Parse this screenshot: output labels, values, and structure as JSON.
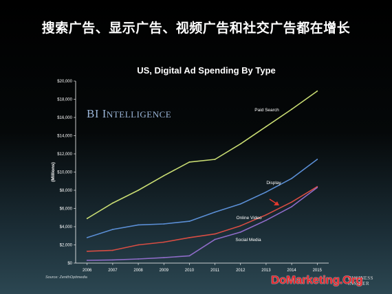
{
  "headline": "搜索广告、显示广告、视频广告和社交广告都在增长",
  "logo": {
    "main": "BI",
    "rest": "Intelligence"
  },
  "source": "Source: ZenithOptimedia",
  "brand": {
    "line1": "BUSINESS",
    "line2": "INSIDER"
  },
  "watermark": "DoMarketing.Org",
  "colors": {
    "paid_search": "#c9dd73",
    "display": "#5b8fd6",
    "online_video": "#d94d43",
    "social_media": "#8f6cc9",
    "arrow": "#e33a2e"
  },
  "chart_data": {
    "type": "line",
    "title": "US, Digital Ad Spending By Type",
    "ylabel": "(Millions)",
    "xlabel": "",
    "x": [
      "2006",
      "2007",
      "2008",
      "2009",
      "2010",
      "2011",
      "2012",
      "2013",
      "2014",
      "2015"
    ],
    "ylim": [
      0,
      20000
    ],
    "yticks": [
      0,
      2000,
      4000,
      6000,
      8000,
      10000,
      12000,
      14000,
      16000,
      18000,
      20000
    ],
    "ytick_labels": [
      "$0",
      "$2,000",
      "$4,000",
      "$6,000",
      "$8,000",
      "$10,000",
      "$12,000",
      "$14,000",
      "$16,000",
      "$18,000",
      "$20,000"
    ],
    "grid": false,
    "series": [
      {
        "key": "paid_search",
        "name": "Paid Search",
        "values": [
          4900,
          6600,
          8000,
          9600,
          11100,
          11400,
          13100,
          15000,
          16900,
          18900
        ]
      },
      {
        "key": "display",
        "name": "Display",
        "values": [
          2800,
          3700,
          4200,
          4300,
          4600,
          5600,
          6500,
          7800,
          9300,
          11400
        ]
      },
      {
        "key": "online_video",
        "name": "Online Video",
        "values": [
          1300,
          1400,
          2000,
          2300,
          2800,
          3200,
          4100,
          5300,
          6700,
          8400
        ]
      },
      {
        "key": "social_media",
        "name": "Social Media",
        "values": [
          300,
          350,
          450,
          600,
          800,
          2600,
          3400,
          4700,
          6200,
          8300
        ]
      }
    ]
  }
}
